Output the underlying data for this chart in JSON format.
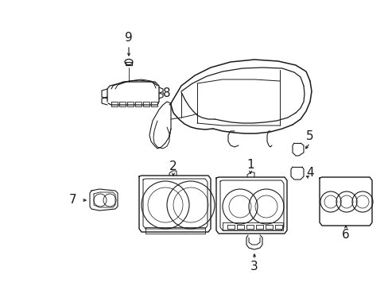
{
  "bg_color": "#ffffff",
  "line_color": "#1a1a1a",
  "figure_width": 4.89,
  "figure_height": 3.6,
  "dpi": 100
}
